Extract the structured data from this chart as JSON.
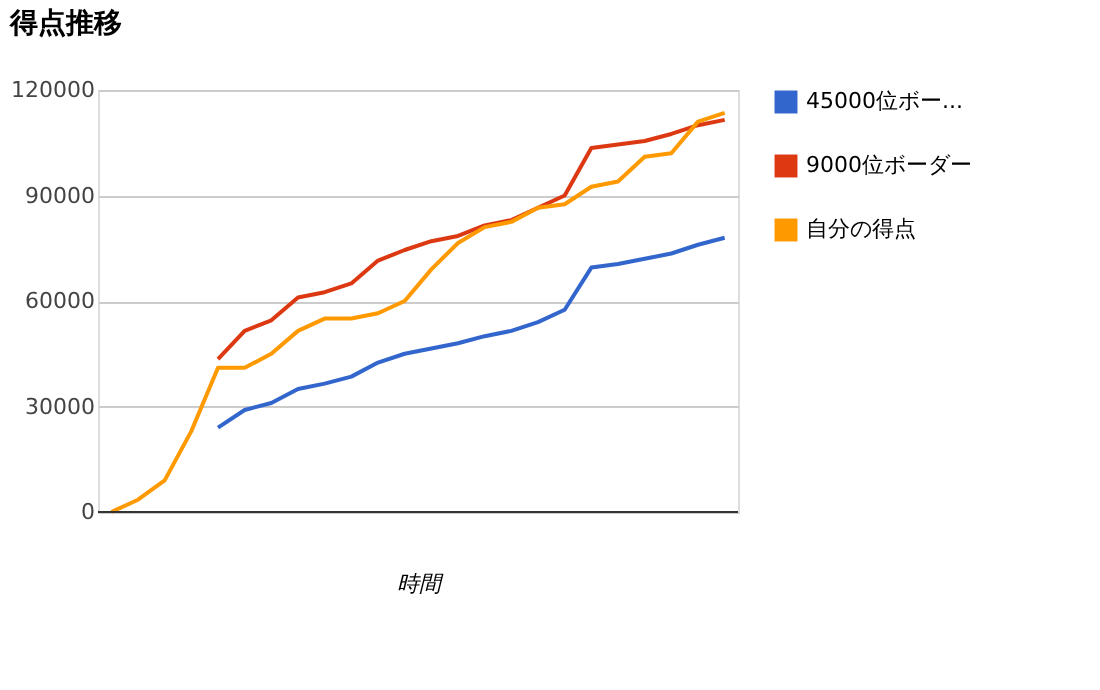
{
  "chart_data": {
    "type": "line",
    "title": "得点推移",
    "xlabel": "時間",
    "categories": [
      null,
      null,
      null,
      null,
      null,
      null,
      null,
      null,
      null,
      null,
      null,
      null,
      null,
      null,
      null,
      null,
      null,
      null,
      null,
      null,
      null,
      null,
      null,
      null
    ],
    "series": [
      {
        "name": "45000位ボー...",
        "color": "#3366cc",
        "values": [
          null,
          null,
          null,
          null,
          24000,
          29000,
          31000,
          35000,
          36500,
          38500,
          42500,
          45000,
          46500,
          48000,
          50000,
          51500,
          54000,
          57500,
          69500,
          70500,
          72000,
          73500,
          76000,
          78000
        ]
      },
      {
        "name": "9000位ボーダー",
        "color": "#dc3912",
        "values": [
          null,
          null,
          null,
          null,
          43500,
          51500,
          54500,
          61000,
          62500,
          65000,
          71500,
          74500,
          77000,
          78500,
          81500,
          83000,
          86500,
          90000,
          103500,
          104500,
          105500,
          107500,
          110000,
          111500
        ]
      },
      {
        "name": "自分の得点",
        "color": "#ff9900",
        "values": [
          0,
          3500,
          9000,
          23000,
          41000,
          41000,
          45000,
          51500,
          55000,
          55000,
          56500,
          60000,
          69000,
          76500,
          81000,
          82500,
          86500,
          87500,
          92500,
          94000,
          101000,
          102000,
          111000,
          113500
        ]
      }
    ],
    "ylim": [
      0,
      120000
    ],
    "yticks": [
      0,
      30000,
      60000,
      90000,
      120000
    ],
    "grid": "y",
    "legend": "top right",
    "tick_labels": "y",
    "marker": "none",
    "line_style": "solid"
  }
}
